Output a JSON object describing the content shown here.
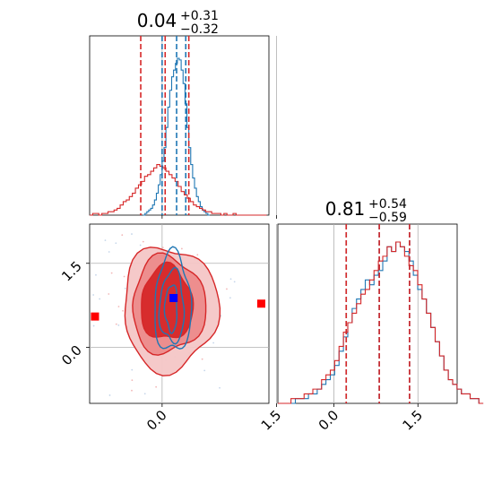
{
  "chart_data": {
    "type": "corner",
    "params": [
      {
        "summary": {
          "median": "0.04",
          "plus": "+0.31",
          "minus": "−0.32"
        },
        "range": [
          -0.95,
          1.4
        ]
      },
      {
        "summary": {
          "median": "0.81",
          "plus": "+0.54",
          "minus": "−0.59"
        },
        "range": [
          -1.0,
          2.2
        ]
      }
    ],
    "ticks": {
      "x": [
        "0.0",
        "1.5"
      ],
      "y": [
        "0.0",
        "1.5"
      ],
      "values": [
        0.0,
        1.5
      ]
    },
    "grid": true,
    "series": [
      {
        "color": "#1f77b4",
        "quantiles_p1": [
          0.0,
          0.19,
          0.31
        ],
        "quantiles_p2": [
          0.22,
          0.81,
          1.35
        ],
        "hist_p1": {
          "edges_start": -0.25,
          "bin": 0.025,
          "counts": [
            0,
            1,
            2,
            3,
            4,
            6,
            9,
            13,
            18,
            24,
            32,
            40,
            52,
            64,
            74,
            82,
            86,
            90,
            93,
            92,
            86,
            78,
            66,
            52,
            40,
            30,
            22,
            16,
            11,
            8,
            5,
            3,
            2,
            1,
            0
          ]
        },
        "hist_p2": {
          "edges_start": -1.0,
          "bin": 0.078,
          "counts": [
            0,
            0,
            0,
            0,
            1,
            1,
            1,
            2,
            2,
            3,
            4,
            5,
            6,
            8,
            11,
            14,
            17,
            20,
            22,
            24,
            26,
            25,
            27,
            28,
            30,
            33,
            32,
            34,
            33,
            32,
            30,
            27,
            24,
            22,
            19,
            16,
            13,
            10,
            7,
            5,
            4,
            3,
            2,
            2,
            1,
            1,
            0
          ]
        },
        "mean_p1": 0.15,
        "mean_p2": 0.85,
        "contour_levels": [
          {
            "cx": 0.14,
            "cy": 0.78,
            "rx": 0.24,
            "ry": 0.88
          },
          {
            "cx": 0.13,
            "cy": 0.72,
            "rx": 0.16,
            "ry": 0.64
          },
          {
            "cx": 0.12,
            "cy": 0.7,
            "rx": 0.08,
            "ry": 0.42
          }
        ]
      },
      {
        "color": "#d62728",
        "quantiles_p1": [
          -0.28,
          0.04,
          0.35
        ],
        "quantiles_p2": [
          0.22,
          0.81,
          1.35
        ],
        "hist_p1": {
          "edges_start": -0.95,
          "bin": 0.04,
          "counts": [
            0,
            1,
            1,
            0,
            1,
            1,
            2,
            2,
            3,
            4,
            6,
            8,
            9,
            11,
            13,
            16,
            18,
            20,
            23,
            24,
            26,
            28,
            30,
            29,
            28,
            26,
            24,
            22,
            20,
            17,
            14,
            12,
            10,
            8,
            6,
            5,
            4,
            3,
            2,
            2,
            1,
            1,
            1,
            0,
            1,
            0,
            0,
            1,
            0,
            0,
            0,
            0,
            0,
            0,
            0,
            0,
            0,
            0
          ]
        },
        "hist_p2": {
          "edges_start": -1.0,
          "bin": 0.078,
          "counts": [
            0,
            0,
            0,
            1,
            1,
            1,
            2,
            2,
            3,
            3,
            5,
            6,
            7,
            9,
            12,
            15,
            17,
            19,
            21,
            23,
            24,
            26,
            28,
            30,
            31,
            33,
            32,
            34,
            33,
            31,
            29,
            28,
            25,
            22,
            19,
            16,
            13,
            10,
            7,
            5,
            4,
            3,
            2,
            2,
            1,
            1,
            0
          ]
        },
        "mean_p1": 0.05,
        "mean_p2": 0.8,
        "contour_levels": [
          {
            "cx": 0.1,
            "cy": 0.7,
            "rx": 0.62,
            "ry": 1.1
          },
          {
            "cx": 0.08,
            "cy": 0.75,
            "rx": 0.48,
            "ry": 0.86
          },
          {
            "cx": 0.06,
            "cy": 0.78,
            "rx": 0.34,
            "ry": 0.66
          }
        ]
      }
    ],
    "markers": [
      {
        "color": "#ff0000",
        "x": -0.88,
        "y": 0.55
      },
      {
        "color": "#ff0000",
        "x": 1.3,
        "y": 0.78
      },
      {
        "color": "#0000ff",
        "x": 0.15,
        "y": 0.88
      }
    ]
  }
}
